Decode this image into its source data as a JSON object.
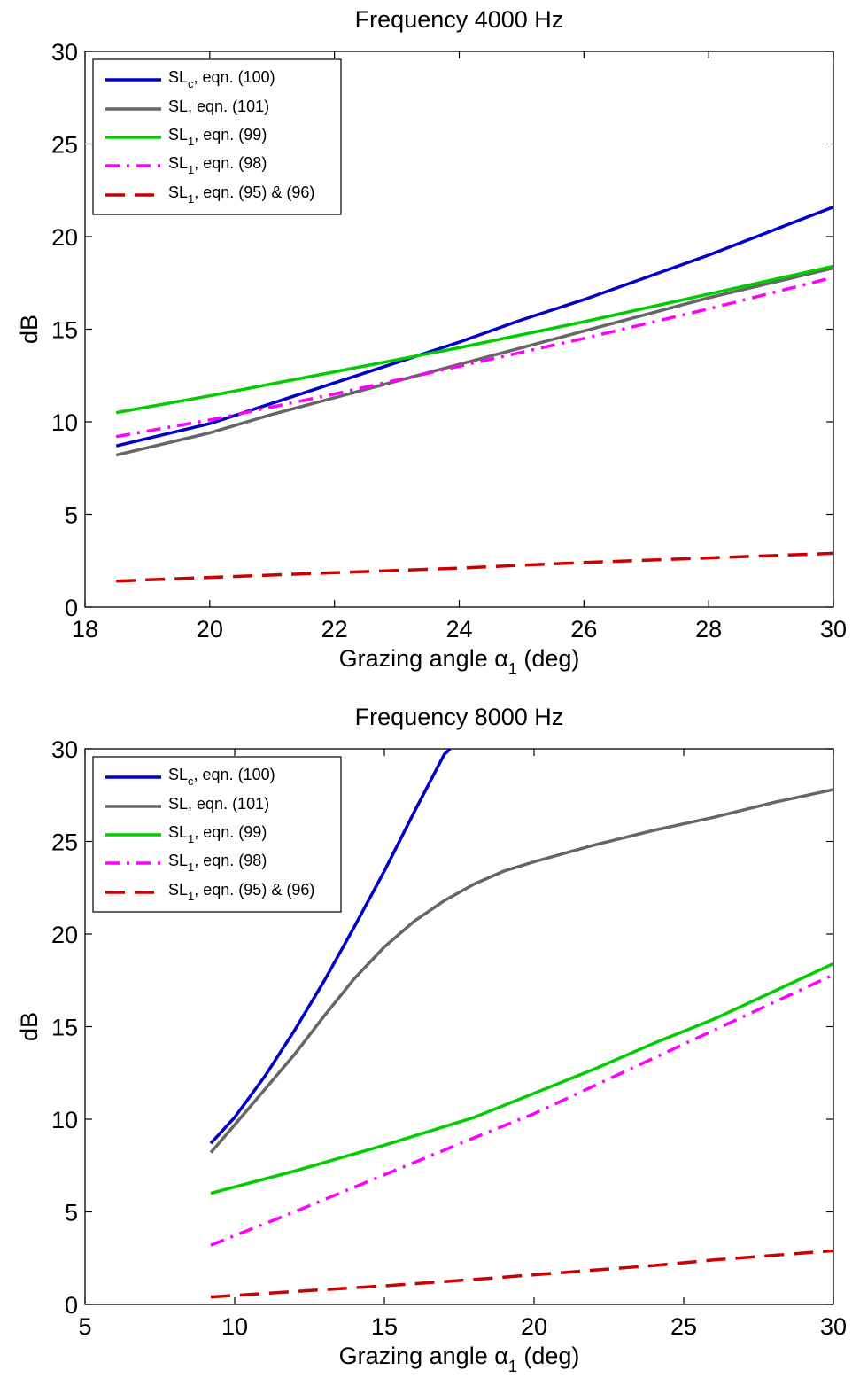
{
  "chart_data": [
    {
      "type": "line",
      "title": "Frequency 4000 Hz",
      "xlabel": {
        "text": "Grazing angle α",
        "sub": "1",
        "suffix": " (deg)"
      },
      "ylabel": "dB",
      "xlim": [
        18,
        30
      ],
      "ylim": [
        0,
        30
      ],
      "xticks": [
        18,
        20,
        22,
        24,
        26,
        28,
        30
      ],
      "yticks": [
        0,
        5,
        10,
        15,
        20,
        25,
        30
      ],
      "grid": false,
      "legend_position": "top-left",
      "series": [
        {
          "name": {
            "main": "SL",
            "sub": "c",
            "rest": ", eqn. (100)"
          },
          "color": "#0000c8",
          "dash": "solid",
          "x": [
            18.5,
            20,
            21,
            22,
            23,
            24,
            25,
            26,
            27,
            28,
            29,
            30
          ],
          "y": [
            8.7,
            9.9,
            11.0,
            12.1,
            13.2,
            14.3,
            15.5,
            16.6,
            17.8,
            19.0,
            20.3,
            21.6
          ]
        },
        {
          "name": {
            "main": "SL",
            "sub": "",
            "rest": ", eqn. (101)"
          },
          "color": "#666666",
          "dash": "solid",
          "x": [
            18.5,
            20,
            21,
            22,
            23,
            24,
            25,
            26,
            27,
            28,
            29,
            30
          ],
          "y": [
            8.2,
            9.4,
            10.4,
            11.3,
            12.2,
            13.1,
            14.0,
            14.9,
            15.8,
            16.7,
            17.5,
            18.3
          ]
        },
        {
          "name": {
            "main": "SL",
            "sub": "1",
            "rest": ", eqn. (99)"
          },
          "color": "#00cc00",
          "dash": "solid",
          "x": [
            18.5,
            20,
            22,
            24,
            26,
            28,
            30
          ],
          "y": [
            10.5,
            11.4,
            12.7,
            14.0,
            15.4,
            16.9,
            18.4
          ]
        },
        {
          "name": {
            "main": "SL",
            "sub": "1",
            "rest": ", eqn. (98)"
          },
          "color": "#ff00ff",
          "dash": "dashdot",
          "x": [
            18.5,
            20,
            22,
            24,
            26,
            28,
            30
          ],
          "y": [
            9.2,
            10.1,
            11.5,
            13.0,
            14.5,
            16.1,
            17.8
          ]
        },
        {
          "name": {
            "main": "SL",
            "sub": "1",
            "rest": ", eqn. (95) & (96)"
          },
          "color": "#cc0000",
          "dash": "dash",
          "x": [
            18.5,
            20,
            22,
            24,
            26,
            28,
            30
          ],
          "y": [
            1.4,
            1.6,
            1.85,
            2.1,
            2.4,
            2.65,
            2.9
          ]
        }
      ]
    },
    {
      "type": "line",
      "title": "Frequency 8000 Hz",
      "xlabel": {
        "text": "Grazing angle α",
        "sub": "1",
        "suffix": " (deg)"
      },
      "ylabel": "dB",
      "xlim": [
        5,
        30
      ],
      "ylim": [
        0,
        30
      ],
      "xticks": [
        5,
        10,
        15,
        20,
        25,
        30
      ],
      "yticks": [
        0,
        5,
        10,
        15,
        20,
        25,
        30
      ],
      "grid": false,
      "legend_position": "top-left",
      "series": [
        {
          "name": {
            "main": "SL",
            "sub": "c",
            "rest": ", eqn. (100)"
          },
          "color": "#0000c8",
          "dash": "solid",
          "x": [
            9.2,
            10,
            11,
            12,
            13,
            14,
            15,
            16,
            17,
            17.2
          ],
          "y": [
            8.7,
            10.1,
            12.3,
            14.8,
            17.5,
            20.4,
            23.4,
            26.6,
            29.7,
            30.0
          ]
        },
        {
          "name": {
            "main": "SL",
            "sub": "",
            "rest": ", eqn. (101)"
          },
          "color": "#666666",
          "dash": "solid",
          "x": [
            9.2,
            10,
            11,
            12,
            13,
            14,
            15,
            16,
            17,
            18,
            19,
            20,
            22,
            24,
            26,
            28,
            30
          ],
          "y": [
            8.2,
            9.7,
            11.6,
            13.5,
            15.6,
            17.6,
            19.3,
            20.7,
            21.8,
            22.7,
            23.4,
            23.9,
            24.8,
            25.6,
            26.3,
            27.1,
            27.8
          ]
        },
        {
          "name": {
            "main": "SL",
            "sub": "1",
            "rest": ", eqn. (99)"
          },
          "color": "#00cc00",
          "dash": "solid",
          "x": [
            9.2,
            12,
            15,
            18,
            20,
            22,
            24,
            26,
            28,
            30
          ],
          "y": [
            6.0,
            7.2,
            8.6,
            10.1,
            11.4,
            12.7,
            14.1,
            15.4,
            16.9,
            18.4
          ]
        },
        {
          "name": {
            "main": "SL",
            "sub": "1",
            "rest": ", eqn. (98)"
          },
          "color": "#ff00ff",
          "dash": "dashdot",
          "x": [
            9.2,
            12,
            15,
            18,
            20,
            22,
            24,
            26,
            28,
            30
          ],
          "y": [
            3.2,
            5.0,
            7.0,
            9.0,
            10.3,
            11.8,
            13.3,
            14.8,
            16.3,
            17.8
          ]
        },
        {
          "name": {
            "main": "SL",
            "sub": "1",
            "rest": ", eqn. (95) & (96)"
          },
          "color": "#cc0000",
          "dash": "dash",
          "x": [
            9.2,
            12,
            15,
            18,
            20,
            22,
            24,
            26,
            28,
            30
          ],
          "y": [
            0.4,
            0.7,
            1.0,
            1.35,
            1.6,
            1.85,
            2.1,
            2.4,
            2.65,
            2.9
          ]
        }
      ]
    }
  ]
}
